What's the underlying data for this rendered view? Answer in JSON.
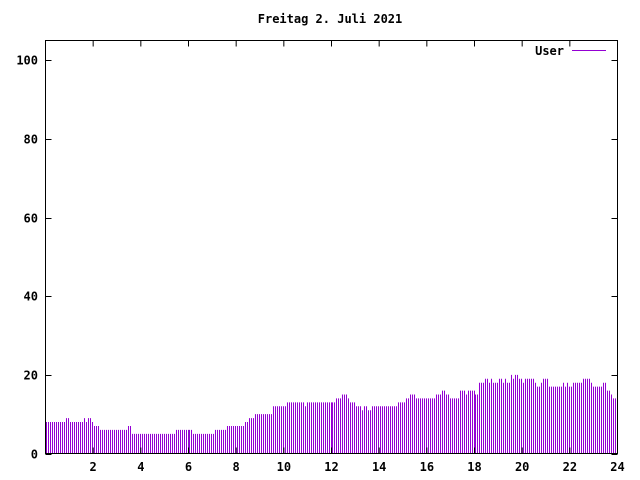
{
  "chart_data": {
    "type": "bar",
    "style": "impulses",
    "title": "Freitag 2. Juli 2021",
    "xlabel": "",
    "ylabel": "",
    "xlim": [
      0,
      24
    ],
    "ylim": [
      0,
      105
    ],
    "x_ticks": [
      "2",
      "4",
      "6",
      "8",
      "10",
      "12",
      "14",
      "16",
      "18",
      "20",
      "22",
      "24"
    ],
    "y_ticks": [
      "0",
      "20",
      "40",
      "60",
      "80",
      "100"
    ],
    "grid": false,
    "legend": "top-right",
    "series": [
      {
        "name": "User",
        "color": "#9400d3",
        "values": [
          8,
          8,
          8,
          8,
          8,
          8,
          8,
          8,
          8,
          8,
          9,
          9,
          8,
          8,
          8,
          8,
          8,
          8,
          8,
          9,
          8,
          9,
          9,
          8,
          7,
          7,
          7,
          6,
          6,
          6,
          6,
          6,
          6,
          6,
          6,
          6,
          6,
          6,
          6,
          6,
          6,
          7,
          7,
          5,
          5,
          5,
          5,
          5,
          5,
          5,
          5,
          5,
          5,
          5,
          5,
          5,
          5,
          5,
          5,
          5,
          5,
          5,
          5,
          5,
          5,
          6,
          6,
          6,
          6,
          6,
          6,
          6,
          6,
          6,
          5,
          5,
          5,
          5,
          5,
          5,
          5,
          5,
          5,
          5,
          5,
          6,
          6,
          6,
          6,
          6,
          6,
          7,
          7,
          7,
          7,
          7,
          7,
          7,
          7,
          7,
          8,
          8,
          9,
          9,
          9,
          10,
          10,
          10,
          10,
          10,
          10,
          10,
          10,
          10,
          12,
          12,
          12,
          12,
          12,
          12,
          12,
          13,
          13,
          13,
          13,
          13,
          13,
          13,
          13,
          13,
          12,
          13,
          13,
          13,
          13,
          13,
          13,
          13,
          13,
          13,
          13,
          13,
          13,
          13,
          13,
          13,
          14,
          14,
          14,
          15,
          15,
          15,
          14,
          13,
          13,
          13,
          12,
          12,
          12,
          11,
          12,
          12,
          11,
          11,
          12,
          12,
          12,
          12,
          12,
          12,
          12,
          12,
          12,
          12,
          12,
          12,
          12,
          13,
          13,
          13,
          13,
          14,
          14,
          15,
          15,
          15,
          14,
          14,
          14,
          14,
          14,
          14,
          14,
          14,
          14,
          14,
          15,
          15,
          15,
          16,
          16,
          15,
          15,
          14,
          14,
          14,
          14,
          14,
          16,
          16,
          16,
          15,
          16,
          16,
          16,
          16,
          15,
          15,
          18,
          18,
          18,
          19,
          19,
          18,
          19,
          18,
          18,
          18,
          19,
          19,
          18,
          19,
          18,
          18,
          20,
          19,
          20,
          20,
          19,
          19,
          18,
          19,
          19,
          19,
          19,
          19,
          18,
          17,
          17,
          18,
          19,
          19,
          19,
          17,
          17,
          17,
          17,
          17,
          17,
          17,
          18,
          17,
          18,
          17,
          17,
          18,
          18,
          18,
          18,
          18,
          19,
          19,
          19,
          19,
          18,
          17,
          17,
          17,
          17,
          17,
          18,
          18,
          16,
          16,
          15,
          14,
          14,
          14
        ]
      }
    ]
  }
}
